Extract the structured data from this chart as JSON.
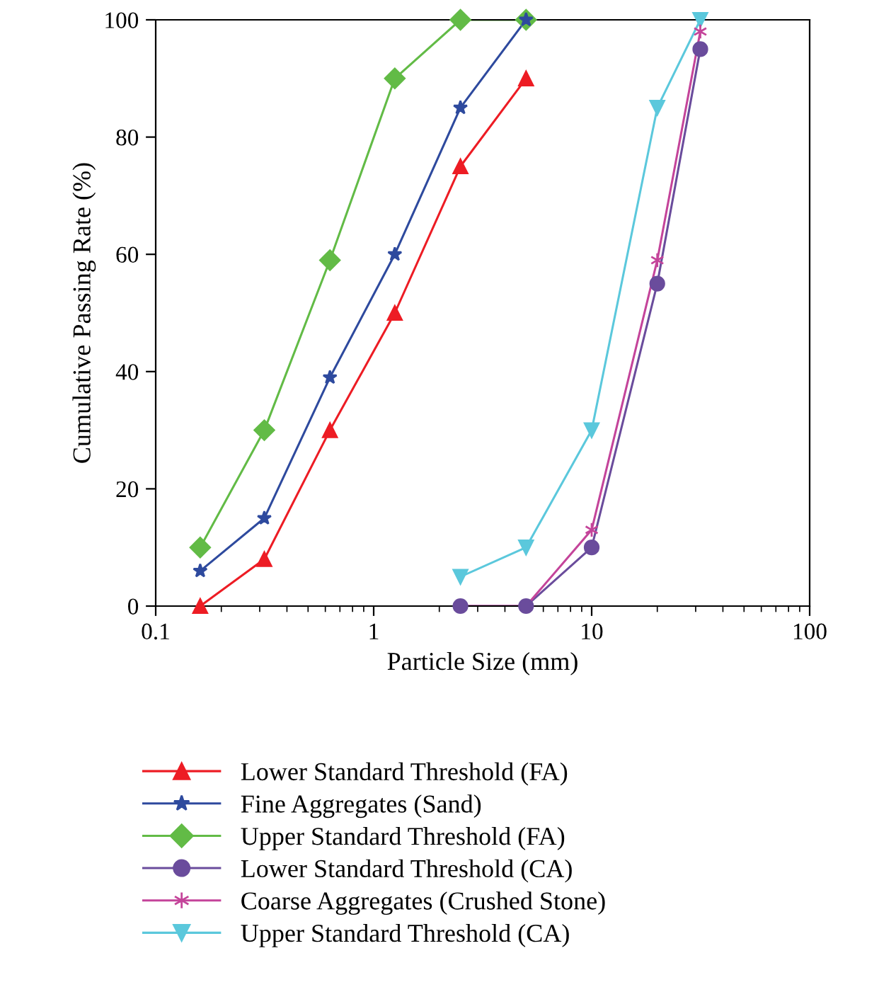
{
  "chart_data": {
    "type": "line",
    "xlabel": "Particle Size (mm)",
    "ylabel": "Cumulative Passing Rate (%)",
    "log": "x",
    "xlim": [
      0.1,
      100
    ],
    "xticks": [
      0.1,
      1,
      10,
      100
    ],
    "ylim": [
      0,
      100
    ],
    "yticks": [
      0,
      20,
      40,
      60,
      80,
      100
    ],
    "grid": false,
    "legend": "bottom",
    "line_style": "solid",
    "series": [
      {
        "name": "Lower Standard Threshold (FA)",
        "color": "#ed1c24",
        "marker": "triangle",
        "x": [
          0.16,
          0.315,
          0.63,
          1.25,
          2.5,
          5
        ],
        "values": [
          0,
          8,
          30,
          50,
          75,
          90
        ]
      },
      {
        "name": "Fine Aggregates (Sand)",
        "color": "#2e4a9e",
        "marker": "star",
        "x": [
          0.16,
          0.315,
          0.63,
          1.25,
          2.5,
          5
        ],
        "values": [
          6,
          15,
          39,
          60,
          85,
          100
        ]
      },
      {
        "name": "Upper Standard Threshold (FA)",
        "color": "#62bb46",
        "marker": "diamond",
        "x": [
          0.16,
          0.315,
          0.63,
          1.25,
          2.5,
          5
        ],
        "values": [
          10,
          30,
          59,
          90,
          100,
          100
        ]
      },
      {
        "name": "Lower Standard Threshold (CA)",
        "color": "#6a4c9c",
        "marker": "circle",
        "x": [
          2.5,
          5,
          10,
          20,
          31.5
        ],
        "values": [
          0,
          0,
          10,
          55,
          95
        ]
      },
      {
        "name": "Coarse Aggregates (Crushed Stone)",
        "color": "#c4449a",
        "marker": "cross",
        "x": [
          2.5,
          5,
          10,
          20,
          31.5
        ],
        "values": [
          0,
          0,
          13,
          59,
          98
        ]
      },
      {
        "name": "Upper Standard Threshold (CA)",
        "color": "#5bc8dc",
        "marker": "triangle_down",
        "x": [
          2.5,
          5,
          10,
          20,
          31.5
        ],
        "values": [
          5,
          10,
          30,
          85,
          100
        ]
      }
    ]
  }
}
